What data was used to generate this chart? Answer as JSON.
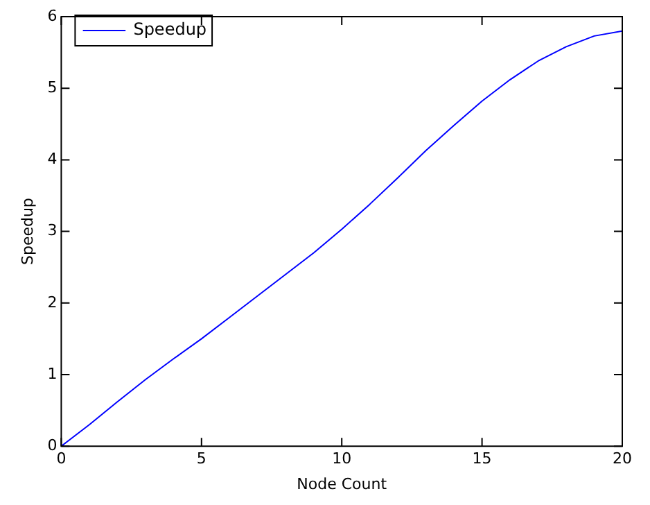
{
  "chart_data": {
    "type": "line",
    "xlabel": "Node Count",
    "ylabel": "Speedup",
    "x": [
      0,
      1,
      2,
      3,
      4,
      5,
      6,
      7,
      8,
      9,
      10,
      11,
      12,
      13,
      14,
      15,
      16,
      17,
      18,
      19,
      20
    ],
    "series": [
      {
        "name": "Speedup",
        "color": "#0000ff",
        "values": [
          0,
          0.3,
          0.62,
          0.93,
          1.22,
          1.5,
          1.8,
          2.1,
          2.4,
          2.7,
          3.03,
          3.38,
          3.75,
          4.13,
          4.48,
          4.82,
          5.12,
          5.38,
          5.58,
          5.73,
          5.8
        ]
      }
    ],
    "xlim": [
      0,
      20
    ],
    "xticks": [
      0,
      5,
      10,
      15,
      20
    ],
    "ylim": [
      0,
      6
    ],
    "yticks": [
      0,
      1,
      2,
      3,
      4,
      5,
      6
    ],
    "grid": false,
    "legend": "top left",
    "marker": "none",
    "line_style": "solid"
  }
}
